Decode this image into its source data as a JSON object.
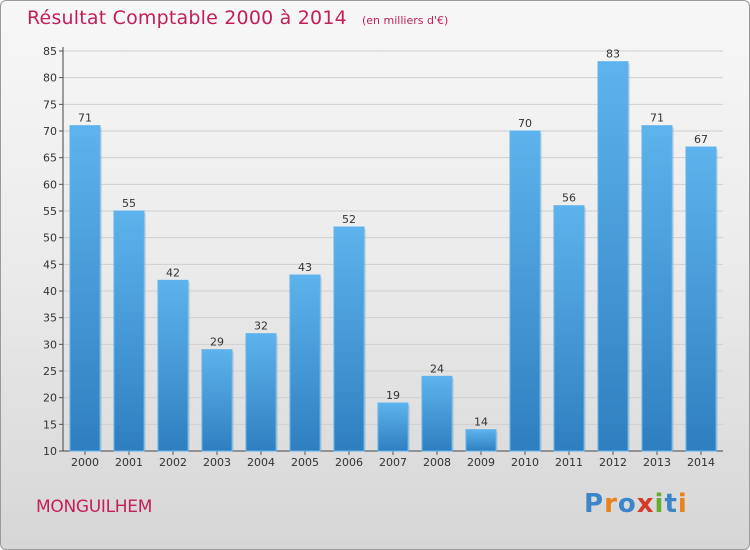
{
  "title": "Résultat Comptable 2000 à 2014",
  "subtitle": "(en milliers d'€)",
  "commune": "MONGUILHEM",
  "brand": {
    "letters": [
      "P",
      "r",
      "o",
      "x",
      "i",
      "t",
      "i"
    ],
    "colors": [
      "#3a86c8",
      "#e8821e",
      "#3a86c8",
      "#d63a2a",
      "#6aab2e",
      "#3a86c8",
      "#e8821e"
    ]
  },
  "colors": {
    "bar": "#4fa6e3",
    "bar_dark": "#2f7fc0",
    "title": "#c41e5a"
  },
  "chart_data": {
    "type": "bar",
    "categories": [
      "2000",
      "2001",
      "2002",
      "2003",
      "2004",
      "2005",
      "2006",
      "2007",
      "2008",
      "2009",
      "2010",
      "2011",
      "2012",
      "2013",
      "2014"
    ],
    "values": [
      71,
      55,
      42,
      29,
      32,
      43,
      52,
      19,
      24,
      14,
      70,
      56,
      83,
      71,
      67
    ],
    "ylim": [
      10,
      85
    ],
    "yticks": [
      10,
      15,
      20,
      25,
      30,
      35,
      40,
      45,
      50,
      55,
      60,
      65,
      70,
      75,
      80,
      85
    ],
    "grid": true,
    "xlabel": "",
    "ylabel": ""
  }
}
